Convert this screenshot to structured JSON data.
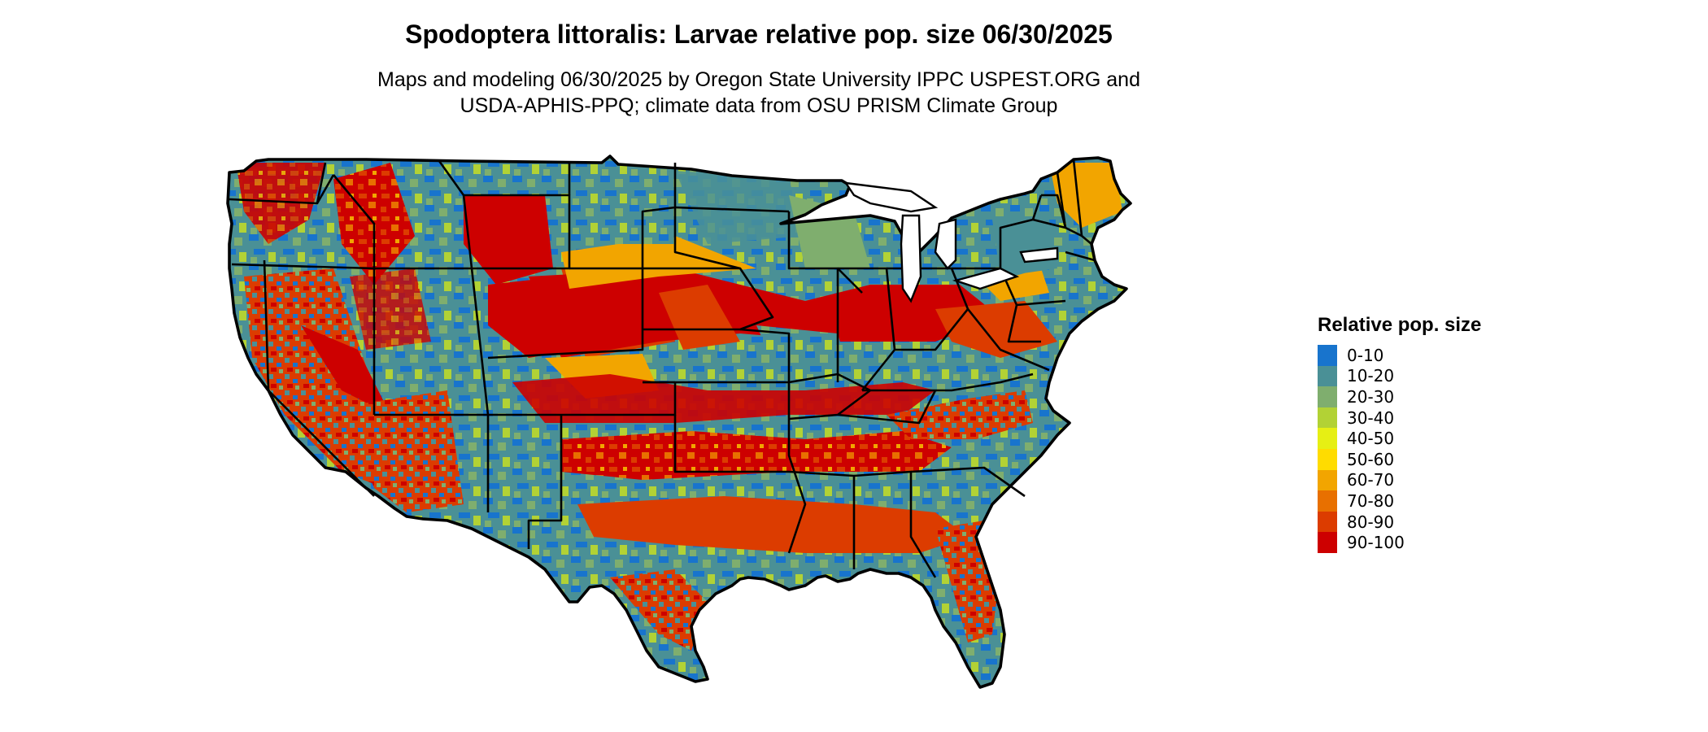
{
  "header": {
    "title": "Spodoptera littoralis: Larvae relative pop. size 06/30/2025",
    "subtitle_line1": "Maps and modeling 06/30/2025 by Oregon State University IPPC USPEST.ORG and",
    "subtitle_line2": "USDA-APHIS-PPQ; climate data from OSU PRISM Climate Group"
  },
  "legend": {
    "title": "Relative pop. size",
    "items": [
      {
        "label": "0-10",
        "color": "#1874CD"
      },
      {
        "label": "10-20",
        "color": "#4A9096"
      },
      {
        "label": "20-30",
        "color": "#7FAE6E"
      },
      {
        "label": "30-40",
        "color": "#B2D235"
      },
      {
        "label": "40-50",
        "color": "#E6EF14"
      },
      {
        "label": "50-60",
        "color": "#FFDC00"
      },
      {
        "label": "60-70",
        "color": "#F2A500"
      },
      {
        "label": "70-80",
        "color": "#E87000"
      },
      {
        "label": "80-90",
        "color": "#DC3C00"
      },
      {
        "label": "90-100",
        "color": "#CD0000"
      }
    ]
  }
}
